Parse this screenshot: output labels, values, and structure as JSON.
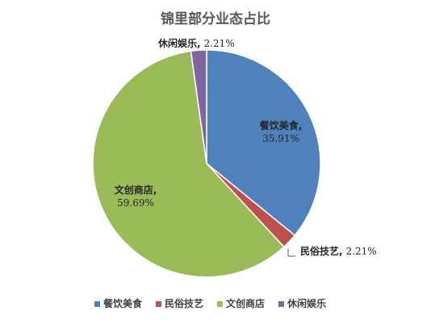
{
  "chart_data": {
    "type": "pie",
    "title": "锦里部分业态占比",
    "categories": [
      "餐饮美食",
      "民俗技艺",
      "文创商店",
      "休闲娱乐"
    ],
    "values": [
      35.91,
      2.21,
      59.69,
      2.21
    ],
    "value_labels": [
      "35.91%",
      "2.21%",
      "59.69%",
      "2.21%"
    ],
    "colors": [
      "#4F81BD",
      "#C0504D",
      "#9BBB59",
      "#8064A2"
    ],
    "legend_position": "bottom"
  }
}
